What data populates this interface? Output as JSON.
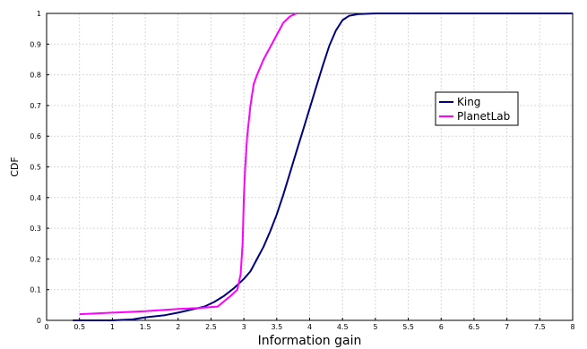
{
  "chart_data": {
    "type": "line",
    "xlabel": "Information gain",
    "ylabel": "CDF",
    "xlim": [
      0,
      8
    ],
    "ylim": [
      0,
      1
    ],
    "x_ticks": [
      "0",
      "0.5",
      "1",
      "1.5",
      "2",
      "2.5",
      "3",
      "3.5",
      "4",
      "4.5",
      "5",
      "5.5",
      "6",
      "6.5",
      "7",
      "7.5",
      "8"
    ],
    "y_ticks": [
      "0",
      "0.1",
      "0.2",
      "0.3",
      "0.4",
      "0.5",
      "0.6",
      "0.7",
      "0.8",
      "0.9",
      "1"
    ],
    "grid": true,
    "legend_position": "right",
    "series": [
      {
        "name": "King",
        "color": "#000080",
        "points": [
          [
            0.4,
            0
          ],
          [
            1.0,
            0
          ],
          [
            1.3,
            0.003
          ],
          [
            1.5,
            0.01
          ],
          [
            1.8,
            0.017
          ],
          [
            2.0,
            0.025
          ],
          [
            2.2,
            0.035
          ],
          [
            2.4,
            0.045
          ],
          [
            2.55,
            0.06
          ],
          [
            2.7,
            0.08
          ],
          [
            2.85,
            0.105
          ],
          [
            3.0,
            0.135
          ],
          [
            3.1,
            0.16
          ],
          [
            3.2,
            0.2
          ],
          [
            3.3,
            0.24
          ],
          [
            3.4,
            0.29
          ],
          [
            3.5,
            0.345
          ],
          [
            3.6,
            0.41
          ],
          [
            3.7,
            0.48
          ],
          [
            3.8,
            0.55
          ],
          [
            3.9,
            0.62
          ],
          [
            4.0,
            0.69
          ],
          [
            4.1,
            0.76
          ],
          [
            4.2,
            0.83
          ],
          [
            4.3,
            0.895
          ],
          [
            4.4,
            0.945
          ],
          [
            4.5,
            0.978
          ],
          [
            4.6,
            0.992
          ],
          [
            4.75,
            0.998
          ],
          [
            5.0,
            1.0
          ],
          [
            8.0,
            1.0
          ]
        ]
      },
      {
        "name": "PlanetLab",
        "color": "#ff00ff",
        "points": [
          [
            0.5,
            0.02
          ],
          [
            1.0,
            0.025
          ],
          [
            1.5,
            0.03
          ],
          [
            2.0,
            0.037
          ],
          [
            2.3,
            0.04
          ],
          [
            2.6,
            0.045
          ],
          [
            2.8,
            0.08
          ],
          [
            2.9,
            0.1
          ],
          [
            2.95,
            0.15
          ],
          [
            2.98,
            0.25
          ],
          [
            3.0,
            0.4
          ],
          [
            3.02,
            0.5
          ],
          [
            3.05,
            0.6
          ],
          [
            3.1,
            0.7
          ],
          [
            3.15,
            0.77
          ],
          [
            3.2,
            0.8
          ],
          [
            3.3,
            0.85
          ],
          [
            3.4,
            0.89
          ],
          [
            3.5,
            0.93
          ],
          [
            3.6,
            0.97
          ],
          [
            3.7,
            0.99
          ],
          [
            3.8,
            1.0
          ]
        ]
      }
    ]
  }
}
